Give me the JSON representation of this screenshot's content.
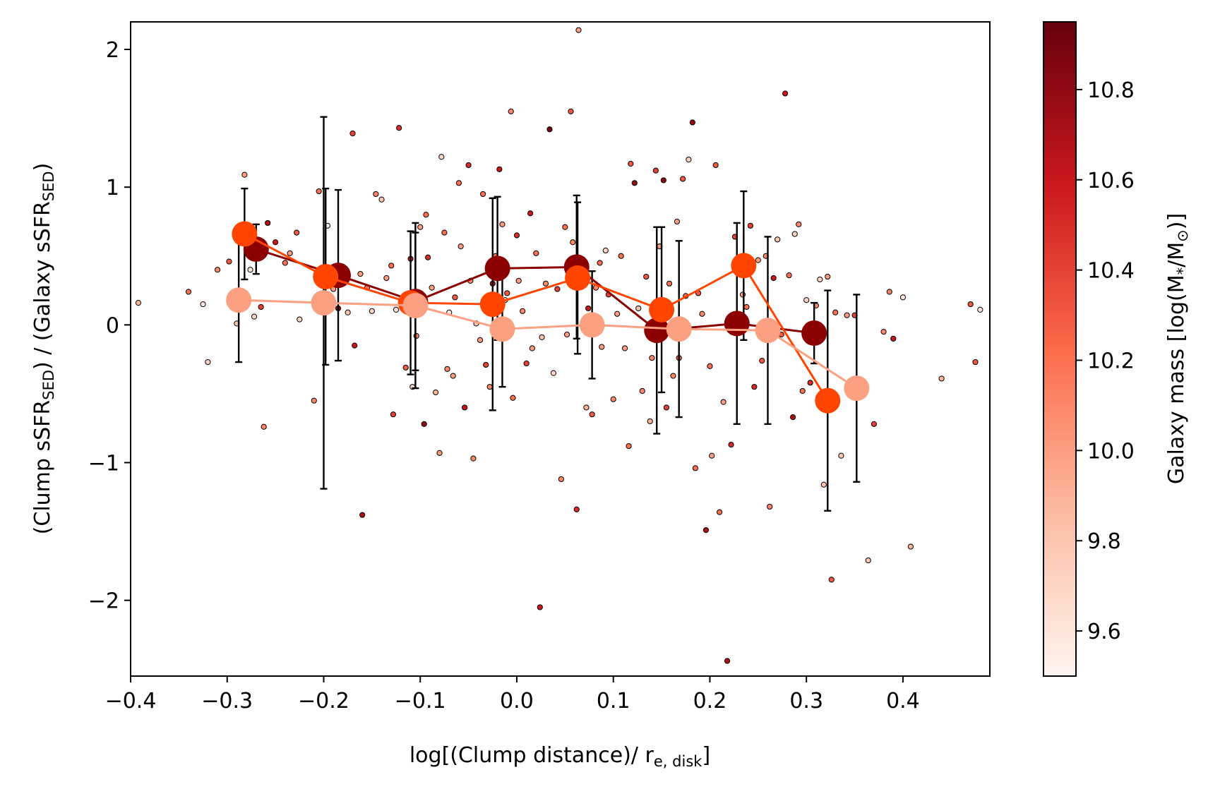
{
  "chart_data": {
    "type": "scatter",
    "xlabel_main": "log[(Clump distance)/ r",
    "xlabel_sub": "e, disk",
    "xlabel_end": "]",
    "ylabel_parts": [
      {
        "t": "(Clump sSFR"
      },
      {
        "t": "SED",
        "sub": true
      },
      {
        "t": ") / (Galaxy sSFR"
      },
      {
        "t": "SED",
        "sub": true
      },
      {
        "t": ")"
      }
    ],
    "colorbar_label": "Galaxy mass [log(M",
    "colorbar_label_sub": "*",
    "colorbar_label_mid": "/M",
    "colorbar_label_sub2": "⊙",
    "colorbar_label_end": ")]",
    "xlim": [
      -0.4,
      0.49
    ],
    "ylim": [
      -2.55,
      2.2
    ],
    "clim": [
      9.5,
      10.95
    ],
    "xticks": [
      -0.4,
      -0.3,
      -0.2,
      -0.1,
      0.0,
      0.1,
      0.2,
      0.3,
      0.4
    ],
    "xtick_labels": [
      "−0.4",
      "−0.3",
      "−0.2",
      "−0.1",
      "0.0",
      "0.1",
      "0.2",
      "0.3",
      "0.4"
    ],
    "yticks": [
      -2,
      -1,
      0,
      1,
      2
    ],
    "ytick_labels": [
      "−2",
      "−1",
      "0",
      "1",
      "2"
    ],
    "cticks": [
      9.6,
      9.8,
      10.0,
      10.2,
      10.4,
      10.6,
      10.8
    ],
    "ctick_labels": [
      "9.6",
      "9.8",
      "10.0",
      "10.2",
      "10.4",
      "10.6",
      "10.8"
    ],
    "series": [
      {
        "color": "#8b0000",
        "x": [
          -0.27,
          -0.185,
          -0.105,
          -0.02,
          0.062,
          0.145,
          0.228,
          0.308
        ],
        "y": [
          0.55,
          0.36,
          0.17,
          0.41,
          0.42,
          -0.04,
          0.01,
          -0.06
        ],
        "err": [
          0.18,
          0.62,
          0.5,
          0.52,
          0.52,
          0.75,
          0.73,
          0.22
        ]
      },
      {
        "color": "#ff4500",
        "x": [
          -0.282,
          -0.198,
          -0.11,
          -0.025,
          0.063,
          0.15,
          0.235,
          0.322
        ],
        "y": [
          0.66,
          0.35,
          0.16,
          0.15,
          0.34,
          0.11,
          0.43,
          -0.55
        ],
        "err": [
          0.33,
          0.64,
          0.52,
          0.77,
          0.55,
          0.6,
          0.54,
          0.8
        ]
      },
      {
        "color": "#fca082",
        "x": [
          -0.288,
          -0.2,
          -0.105,
          -0.015,
          0.078,
          0.168,
          0.26,
          0.352
        ],
        "y": [
          0.18,
          0.16,
          0.14,
          -0.03,
          0.0,
          -0.03,
          -0.04,
          -0.46
        ],
        "err": [
          0.45,
          1.35,
          0.6,
          0.42,
          0.39,
          0.64,
          0.68,
          0.68
        ]
      }
    ],
    "points": [
      [
        -0.392,
        0.16,
        9.9
      ],
      [
        -0.34,
        0.24,
        10.2
      ],
      [
        -0.325,
        0.15,
        9.6
      ],
      [
        -0.32,
        -0.27,
        9.7
      ],
      [
        -0.31,
        0.4,
        10.1
      ],
      [
        -0.298,
        0.46,
        10.3
      ],
      [
        -0.29,
        0.01,
        9.8
      ],
      [
        -0.282,
        1.09,
        10.0
      ],
      [
        -0.276,
        0.4,
        9.6
      ],
      [
        -0.272,
        0.06,
        9.7
      ],
      [
        -0.265,
        0.13,
        10.4
      ],
      [
        -0.262,
        -0.74,
        10.1
      ],
      [
        -0.258,
        0.74,
        10.7
      ],
      [
        -0.25,
        0.6,
        10.6
      ],
      [
        -0.24,
        0.45,
        10.2
      ],
      [
        -0.235,
        0.52,
        10.0
      ],
      [
        -0.228,
        0.67,
        10.3
      ],
      [
        -0.225,
        0.04,
        9.7
      ],
      [
        -0.21,
        -0.55,
        10.1
      ],
      [
        -0.205,
        0.97,
        10.2
      ],
      [
        -0.2,
        0.4,
        10.5
      ],
      [
        -0.196,
        0.72,
        9.6
      ],
      [
        -0.19,
        0.26,
        10.0
      ],
      [
        -0.185,
        0.12,
        10.8
      ],
      [
        -0.18,
        0.3,
        10.2
      ],
      [
        -0.175,
        0.09,
        9.8
      ],
      [
        -0.17,
        1.39,
        10.4
      ],
      [
        -0.168,
        -0.15,
        10.6
      ],
      [
        -0.162,
        0.37,
        10.0
      ],
      [
        -0.16,
        -1.38,
        10.7
      ],
      [
        -0.155,
        0.27,
        10.2
      ],
      [
        -0.15,
        0.1,
        9.7
      ],
      [
        -0.146,
        0.95,
        10.1
      ],
      [
        -0.14,
        0.91,
        9.8
      ],
      [
        -0.135,
        0.34,
        10.0
      ],
      [
        -0.13,
        0.43,
        10.2
      ],
      [
        -0.128,
        -0.65,
        10.4
      ],
      [
        -0.125,
        0.11,
        9.6
      ],
      [
        -0.122,
        1.43,
        10.5
      ],
      [
        -0.118,
        0.2,
        10.0
      ],
      [
        -0.115,
        -0.31,
        10.3
      ],
      [
        -0.11,
        0.48,
        10.6
      ],
      [
        -0.108,
        -0.45,
        9.7
      ],
      [
        -0.104,
        -0.08,
        10.1
      ],
      [
        -0.1,
        0.71,
        10.0
      ],
      [
        -0.096,
        -0.72,
        10.8
      ],
      [
        -0.094,
        0.8,
        10.2
      ],
      [
        -0.092,
        0.49,
        10.5
      ],
      [
        -0.088,
        0.27,
        10.0
      ],
      [
        -0.084,
        -0.49,
        9.9
      ],
      [
        -0.08,
        -0.93,
        10.0
      ],
      [
        -0.078,
        1.22,
        9.7
      ],
      [
        -0.075,
        0.67,
        10.2
      ],
      [
        -0.072,
        -0.32,
        10.1
      ],
      [
        -0.07,
        0.09,
        9.6
      ],
      [
        -0.066,
        -0.37,
        10.0
      ],
      [
        -0.064,
        0.2,
        10.3
      ],
      [
        -0.06,
        1.03,
        10.2
      ],
      [
        -0.058,
        0.57,
        10.0
      ],
      [
        -0.054,
        -0.6,
        10.6
      ],
      [
        -0.05,
        1.16,
        10.5
      ],
      [
        -0.048,
        0.32,
        10.1
      ],
      [
        -0.045,
        -0.97,
        10.1
      ],
      [
        -0.042,
        0.01,
        9.8
      ],
      [
        -0.038,
        -0.11,
        10.0
      ],
      [
        -0.035,
        0.95,
        10.2
      ],
      [
        -0.032,
        -0.29,
        10.4
      ],
      [
        -0.028,
        -0.45,
        10.1
      ],
      [
        -0.025,
        0.3,
        10.7
      ],
      [
        -0.022,
        0.5,
        10.2
      ],
      [
        -0.018,
        1.13,
        10.6
      ],
      [
        -0.015,
        0.73,
        10.0
      ],
      [
        -0.012,
        0.18,
        9.7
      ],
      [
        -0.01,
        0.23,
        10.3
      ],
      [
        -0.006,
        1.55,
        10.1
      ],
      [
        -0.004,
        -0.53,
        10.2
      ],
      [
        0.0,
        0.65,
        10.5
      ],
      [
        0.002,
        0.32,
        10.0
      ],
      [
        0.006,
        0.1,
        10.1
      ],
      [
        0.01,
        -0.28,
        10.4
      ],
      [
        0.014,
        0.81,
        10.6
      ],
      [
        0.016,
        -0.17,
        10.0
      ],
      [
        0.02,
        0.52,
        10.2
      ],
      [
        0.024,
        -2.05,
        10.6
      ],
      [
        0.026,
        -0.09,
        9.8
      ],
      [
        0.03,
        0.3,
        10.1
      ],
      [
        0.034,
        1.42,
        10.9
      ],
      [
        0.038,
        -0.35,
        9.7
      ],
      [
        0.042,
        0.26,
        10.4
      ],
      [
        0.046,
        -1.12,
        10.1
      ],
      [
        0.05,
        0.71,
        10.2
      ],
      [
        0.052,
        -0.07,
        10.0
      ],
      [
        0.056,
        1.55,
        10.3
      ],
      [
        0.058,
        0.6,
        10.1
      ],
      [
        0.062,
        -1.34,
        10.5
      ],
      [
        0.064,
        2.14,
        10.0
      ],
      [
        0.068,
        0.37,
        10.2
      ],
      [
        0.072,
        -0.6,
        9.9
      ],
      [
        0.074,
        0.12,
        10.6
      ],
      [
        0.078,
        -0.65,
        10.3
      ],
      [
        0.082,
        0.27,
        10.1
      ],
      [
        0.086,
        0.45,
        10.2
      ],
      [
        0.088,
        -0.16,
        10.0
      ],
      [
        0.092,
        0.54,
        9.7
      ],
      [
        0.095,
        0.22,
        10.4
      ],
      [
        0.1,
        -0.54,
        10.1
      ],
      [
        0.104,
        0.08,
        10.0
      ],
      [
        0.108,
        0.5,
        10.2
      ],
      [
        0.112,
        -0.17,
        10.0
      ],
      [
        0.116,
        -0.88,
        10.2
      ],
      [
        0.118,
        1.17,
        10.3
      ],
      [
        0.122,
        1.03,
        10.8
      ],
      [
        0.126,
        0.12,
        9.8
      ],
      [
        0.13,
        -0.48,
        10.1
      ],
      [
        0.134,
        0.35,
        10.3
      ],
      [
        0.138,
        -0.7,
        9.9
      ],
      [
        0.14,
        -0.24,
        10.1
      ],
      [
        0.144,
        1.12,
        10.4
      ],
      [
        0.148,
        0.57,
        10.0
      ],
      [
        0.152,
        1.05,
        10.8
      ],
      [
        0.155,
        -0.6,
        10.4
      ],
      [
        0.158,
        0.3,
        10.2
      ],
      [
        0.162,
        -0.37,
        10.1
      ],
      [
        0.166,
        0.75,
        10.0
      ],
      [
        0.168,
        -0.24,
        10.3
      ],
      [
        0.172,
        1.06,
        10.3
      ],
      [
        0.175,
        0.21,
        10.2
      ],
      [
        0.178,
        1.2,
        9.7
      ],
      [
        0.182,
        1.47,
        10.8
      ],
      [
        0.185,
        -1.04,
        10.2
      ],
      [
        0.188,
        0.23,
        10.3
      ],
      [
        0.192,
        0.08,
        10.1
      ],
      [
        0.196,
        -1.49,
        10.7
      ],
      [
        0.2,
        -0.3,
        10.2
      ],
      [
        0.202,
        -0.95,
        10.0
      ],
      [
        0.206,
        1.16,
        10.3
      ],
      [
        0.21,
        -1.36,
        10.2
      ],
      [
        0.214,
        -0.56,
        10.0
      ],
      [
        0.218,
        -2.44,
        10.7
      ],
      [
        0.222,
        -0.87,
        10.5
      ],
      [
        0.226,
        0.64,
        10.4
      ],
      [
        0.23,
        0.49,
        10.1
      ],
      [
        0.234,
        0.22,
        10.0
      ],
      [
        0.238,
        0.13,
        10.2
      ],
      [
        0.242,
        0.72,
        10.4
      ],
      [
        0.246,
        -0.45,
        10.5
      ],
      [
        0.25,
        0.47,
        10.0
      ],
      [
        0.254,
        -0.26,
        10.3
      ],
      [
        0.258,
        0.5,
        10.1
      ],
      [
        0.262,
        -1.32,
        10.1
      ],
      [
        0.266,
        0.34,
        10.6
      ],
      [
        0.27,
        0.62,
        9.8
      ],
      [
        0.274,
        -0.07,
        10.3
      ],
      [
        0.278,
        1.68,
        10.6
      ],
      [
        0.282,
        0.36,
        10.2
      ],
      [
        0.286,
        -0.67,
        10.7
      ],
      [
        0.288,
        0.66,
        9.7
      ],
      [
        0.292,
        0.73,
        10.1
      ],
      [
        0.296,
        -0.48,
        10.2
      ],
      [
        0.3,
        0.18,
        9.7
      ],
      [
        0.304,
        -0.42,
        10.5
      ],
      [
        0.31,
        0.14,
        10.1
      ],
      [
        0.314,
        0.33,
        9.7
      ],
      [
        0.318,
        -1.16,
        9.8
      ],
      [
        0.322,
        0.35,
        10.0
      ],
      [
        0.326,
        -1.85,
        10.3
      ],
      [
        0.33,
        0.09,
        10.2
      ],
      [
        0.336,
        -0.95,
        9.8
      ],
      [
        0.342,
        0.07,
        10.0
      ],
      [
        0.35,
        0.07,
        10.4
      ],
      [
        0.358,
        -0.46,
        10.1
      ],
      [
        0.364,
        -1.71,
        9.8
      ],
      [
        0.37,
        -0.72,
        10.4
      ],
      [
        0.38,
        -0.05,
        10.1
      ],
      [
        0.386,
        0.24,
        10.1
      ],
      [
        0.39,
        -0.1,
        10.6
      ],
      [
        0.4,
        0.2,
        9.6
      ],
      [
        0.408,
        -1.61,
        9.9
      ],
      [
        0.44,
        -0.39,
        9.9
      ],
      [
        0.47,
        0.15,
        10.3
      ],
      [
        0.475,
        -0.27,
        10.3
      ],
      [
        0.48,
        0.11,
        9.6
      ]
    ]
  }
}
